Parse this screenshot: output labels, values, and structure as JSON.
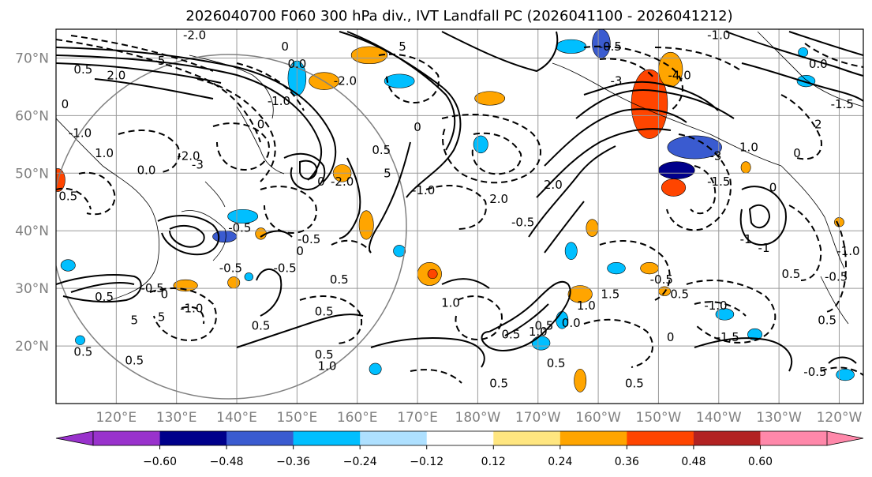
{
  "chart_data": {
    "type": "contour_map",
    "title": "2026040700 F060 300 hPa div., IVT Landfall PC (2026041100 - 2026041212)",
    "lon_range": [
      110,
      244
    ],
    "lat_range": [
      10,
      75
    ],
    "x_ticks": [
      {
        "lon": 120,
        "label": "120°E"
      },
      {
        "lon": 130,
        "label": "130°E"
      },
      {
        "lon": 140,
        "label": "140°E"
      },
      {
        "lon": 150,
        "label": "150°E"
      },
      {
        "lon": 160,
        "label": "160°E"
      },
      {
        "lon": 170,
        "label": "170°E"
      },
      {
        "lon": 180,
        "label": "180°W"
      },
      {
        "lon": 190,
        "label": "170°W"
      },
      {
        "lon": 200,
        "label": "160°W"
      },
      {
        "lon": 210,
        "label": "150°W"
      },
      {
        "lon": 220,
        "label": "140°W"
      },
      {
        "lon": 230,
        "label": "130°W"
      },
      {
        "lon": 240,
        "label": "120°W"
      }
    ],
    "y_ticks": [
      {
        "lat": 20,
        "label": "20°N"
      },
      {
        "lat": 30,
        "label": "30°N"
      },
      {
        "lat": 40,
        "label": "40°N"
      },
      {
        "lat": 50,
        "label": "50°N"
      },
      {
        "lat": 60,
        "label": "60°N"
      },
      {
        "lat": 70,
        "label": "70°N"
      }
    ],
    "colorbar": {
      "ticks": [
        "−0.60",
        "−0.48",
        "−0.36",
        "−0.24",
        "−0.12",
        "0.12",
        "0.24",
        "0.36",
        "0.48",
        "0.60"
      ],
      "colors": [
        "#9932cc",
        "#00008b",
        "#3a5bd0",
        "#00bfff",
        "#aee0ff",
        "#ffffff",
        "#ffe680",
        "#ffa500",
        "#ff4500",
        "#b22222",
        "#ff88aa"
      ],
      "extend": "both"
    },
    "shaded_blobs": [
      {
        "lon": 110.3,
        "lat": 48.8,
        "rx": 1.2,
        "ry": 2.0,
        "color": "#ff4500"
      },
      {
        "lon": 131.5,
        "lat": 30.5,
        "rx": 2.0,
        "ry": 1.0,
        "color": "#ffa500"
      },
      {
        "lon": 139.5,
        "lat": 31.0,
        "rx": 1.0,
        "ry": 1.0,
        "color": "#ffa500"
      },
      {
        "lon": 141.0,
        "lat": 42.5,
        "rx": 2.5,
        "ry": 1.2,
        "color": "#00bfff"
      },
      {
        "lon": 138.0,
        "lat": 39.0,
        "rx": 2.0,
        "ry": 1.0,
        "color": "#3a5bd0"
      },
      {
        "lon": 144.0,
        "lat": 39.5,
        "rx": 0.9,
        "ry": 1.0,
        "color": "#ffa500"
      },
      {
        "lon": 150.0,
        "lat": 66.5,
        "rx": 1.5,
        "ry": 3.0,
        "color": "#00bfff"
      },
      {
        "lon": 154.5,
        "lat": 66.0,
        "rx": 2.5,
        "ry": 1.5,
        "color": "#ffa500"
      },
      {
        "lon": 162.0,
        "lat": 70.5,
        "rx": 3.0,
        "ry": 1.5,
        "color": "#ffa500"
      },
      {
        "lon": 167.0,
        "lat": 66.0,
        "rx": 2.5,
        "ry": 1.2,
        "color": "#00bfff"
      },
      {
        "lon": 157.5,
        "lat": 50.0,
        "rx": 1.5,
        "ry": 1.5,
        "color": "#ffa500"
      },
      {
        "lon": 161.5,
        "lat": 41.0,
        "rx": 1.2,
        "ry": 2.5,
        "color": "#ffa500"
      },
      {
        "lon": 167.0,
        "lat": 36.5,
        "rx": 1.0,
        "ry": 1.0,
        "color": "#00bfff"
      },
      {
        "lon": 172.0,
        "lat": 32.5,
        "rx": 2.0,
        "ry": 2.0,
        "color": "#ffa500"
      },
      {
        "lon": 172.5,
        "lat": 32.5,
        "rx": 0.8,
        "ry": 0.8,
        "color": "#ff4500"
      },
      {
        "lon": 180.5,
        "lat": 55.0,
        "rx": 1.2,
        "ry": 1.5,
        "color": "#00bfff"
      },
      {
        "lon": 182.0,
        "lat": 63.0,
        "rx": 2.5,
        "ry": 1.2,
        "color": "#ffa500"
      },
      {
        "lon": 195.5,
        "lat": 72.0,
        "rx": 2.5,
        "ry": 1.2,
        "color": "#00bfff"
      },
      {
        "lon": 200.5,
        "lat": 72.5,
        "rx": 1.5,
        "ry": 2.5,
        "color": "#3a5bd0"
      },
      {
        "lon": 208.5,
        "lat": 62.0,
        "rx": 3.0,
        "ry": 6.0,
        "color": "#ff4500"
      },
      {
        "lon": 212.0,
        "lat": 68.0,
        "rx": 2.0,
        "ry": 3.0,
        "color": "#ffa500"
      },
      {
        "lon": 216.0,
        "lat": 54.5,
        "rx": 4.5,
        "ry": 2.0,
        "color": "#3a5bd0"
      },
      {
        "lon": 213.0,
        "lat": 50.5,
        "rx": 3.0,
        "ry": 1.5,
        "color": "#00008b"
      },
      {
        "lon": 212.5,
        "lat": 47.5,
        "rx": 2.0,
        "ry": 1.5,
        "color": "#ff4500"
      },
      {
        "lon": 199.0,
        "lat": 40.5,
        "rx": 1.0,
        "ry": 1.5,
        "color": "#ffa500"
      },
      {
        "lon": 195.5,
        "lat": 36.5,
        "rx": 1.0,
        "ry": 1.5,
        "color": "#00bfff"
      },
      {
        "lon": 197.0,
        "lat": 29.0,
        "rx": 2.0,
        "ry": 1.5,
        "color": "#ffa500"
      },
      {
        "lon": 194.0,
        "lat": 24.5,
        "rx": 1.0,
        "ry": 1.5,
        "color": "#00bfff"
      },
      {
        "lon": 190.5,
        "lat": 20.5,
        "rx": 1.5,
        "ry": 1.2,
        "color": "#00bfff"
      },
      {
        "lon": 197.0,
        "lat": 14.0,
        "rx": 1.0,
        "ry": 2.0,
        "color": "#ffa500"
      },
      {
        "lon": 203.0,
        "lat": 33.5,
        "rx": 1.5,
        "ry": 1.0,
        "color": "#00bfff"
      },
      {
        "lon": 208.5,
        "lat": 33.5,
        "rx": 1.5,
        "ry": 1.0,
        "color": "#ffa500"
      },
      {
        "lon": 211.0,
        "lat": 29.5,
        "rx": 1.0,
        "ry": 0.8,
        "color": "#ffa500"
      },
      {
        "lon": 224.5,
        "lat": 51.0,
        "rx": 0.8,
        "ry": 1.0,
        "color": "#ffa500"
      },
      {
        "lon": 234.5,
        "lat": 66.0,
        "rx": 1.5,
        "ry": 1.0,
        "color": "#00bfff"
      },
      {
        "lon": 234.0,
        "lat": 71.0,
        "rx": 0.8,
        "ry": 0.8,
        "color": "#00bfff"
      },
      {
        "lon": 240.0,
        "lat": 41.5,
        "rx": 0.8,
        "ry": 0.8,
        "color": "#ffa500"
      },
      {
        "lon": 221.0,
        "lat": 25.5,
        "rx": 1.5,
        "ry": 1.0,
        "color": "#00bfff"
      },
      {
        "lon": 226.0,
        "lat": 22.0,
        "rx": 1.2,
        "ry": 1.0,
        "color": "#00bfff"
      },
      {
        "lon": 241.0,
        "lat": 15.0,
        "rx": 1.5,
        "ry": 1.0,
        "color": "#00bfff"
      },
      {
        "lon": 112.0,
        "lat": 34.0,
        "rx": 1.2,
        "ry": 1.0,
        "color": "#00bfff"
      },
      {
        "lon": 114.0,
        "lat": 21.0,
        "rx": 0.8,
        "ry": 0.8,
        "color": "#00bfff"
      },
      {
        "lon": 163.0,
        "lat": 16.0,
        "rx": 1.0,
        "ry": 1.0,
        "color": "#00bfff"
      },
      {
        "lon": 142.0,
        "lat": 32.0,
        "rx": 0.7,
        "ry": 0.7,
        "color": "#00bfff"
      }
    ],
    "contour_labels": [
      {
        "lon": 133.0,
        "lat": 74.0,
        "text": "-2.0"
      },
      {
        "lon": 114.5,
        "lat": 68.0,
        "text": "0.5"
      },
      {
        "lon": 127.5,
        "lat": 69.5,
        "text": "5"
      },
      {
        "lon": 120.0,
        "lat": 67.0,
        "text": "2.0"
      },
      {
        "lon": 111.5,
        "lat": 62.0,
        "text": "0"
      },
      {
        "lon": 114.0,
        "lat": 57.0,
        "text": "-1.0"
      },
      {
        "lon": 118.0,
        "lat": 53.5,
        "text": "1.0"
      },
      {
        "lon": 132.0,
        "lat": 53.0,
        "text": "-2.0"
      },
      {
        "lon": 133.5,
        "lat": 51.5,
        "text": "-3"
      },
      {
        "lon": 125.0,
        "lat": 50.5,
        "text": "0.0"
      },
      {
        "lon": 112.0,
        "lat": 46.0,
        "text": "0.5"
      },
      {
        "lon": 148.0,
        "lat": 72.0,
        "text": "0"
      },
      {
        "lon": 150.0,
        "lat": 69.0,
        "text": "0.0"
      },
      {
        "lon": 158.0,
        "lat": 66.0,
        "text": "-2.0"
      },
      {
        "lon": 147.0,
        "lat": 62.5,
        "text": "-1.0"
      },
      {
        "lon": 144.0,
        "lat": 58.5,
        "text": "0"
      },
      {
        "lon": 157.5,
        "lat": 48.5,
        "text": "-2.0"
      },
      {
        "lon": 164.0,
        "lat": 54.0,
        "text": "0.5"
      },
      {
        "lon": 165.0,
        "lat": 50.0,
        "text": "5"
      },
      {
        "lon": 171.0,
        "lat": 47.0,
        "text": "-1.0"
      },
      {
        "lon": 170.0,
        "lat": 58.0,
        "text": "0"
      },
      {
        "lon": 183.5,
        "lat": 45.5,
        "text": "2.0"
      },
      {
        "lon": 187.5,
        "lat": 41.5,
        "text": "-0.5"
      },
      {
        "lon": 192.5,
        "lat": 48.0,
        "text": "2.0"
      },
      {
        "lon": 167.5,
        "lat": 72.0,
        "text": "5"
      },
      {
        "lon": 202.0,
        "lat": 72.0,
        "text": "-0.5"
      },
      {
        "lon": 203.0,
        "lat": 66.0,
        "text": "-3"
      },
      {
        "lon": 213.5,
        "lat": 67.0,
        "text": "-4.0"
      },
      {
        "lon": 219.5,
        "lat": 53.0,
        "text": "-3"
      },
      {
        "lon": 225.0,
        "lat": 54.5,
        "text": "1.0"
      },
      {
        "lon": 220.0,
        "lat": 48.5,
        "text": "-1.5"
      },
      {
        "lon": 220.0,
        "lat": 74.0,
        "text": "-1.0"
      },
      {
        "lon": 236.5,
        "lat": 69.0,
        "text": "0.0"
      },
      {
        "lon": 240.5,
        "lat": 62.0,
        "text": "-1.5"
      },
      {
        "lon": 236.5,
        "lat": 58.5,
        "text": "2"
      },
      {
        "lon": 233.0,
        "lat": 53.5,
        "text": "0"
      },
      {
        "lon": 229.0,
        "lat": 47.5,
        "text": "0"
      },
      {
        "lon": 224.5,
        "lat": 38.5,
        "text": "-1"
      },
      {
        "lon": 227.5,
        "lat": 37.0,
        "text": "-1"
      },
      {
        "lon": 154.0,
        "lat": 48.5,
        "text": "0"
      },
      {
        "lon": 140.5,
        "lat": 40.5,
        "text": "-0.5"
      },
      {
        "lon": 152.0,
        "lat": 38.5,
        "text": "-0.5"
      },
      {
        "lon": 150.5,
        "lat": 36.5,
        "text": "0"
      },
      {
        "lon": 139.0,
        "lat": 33.5,
        "text": "-0.5"
      },
      {
        "lon": 148.0,
        "lat": 33.5,
        "text": "-0.5"
      },
      {
        "lon": 157.0,
        "lat": 31.5,
        "text": "0.5"
      },
      {
        "lon": 132.5,
        "lat": 26.5,
        "text": "-1.0"
      },
      {
        "lon": 126.0,
        "lat": 30.0,
        "text": "-0.5"
      },
      {
        "lon": 128.0,
        "lat": 29.0,
        "text": "0"
      },
      {
        "lon": 118.0,
        "lat": 28.5,
        "text": "0.5"
      },
      {
        "lon": 123.0,
        "lat": 24.5,
        "text": "5"
      },
      {
        "lon": 127.5,
        "lat": 25.0,
        "text": "5"
      },
      {
        "lon": 114.5,
        "lat": 19.0,
        "text": "0.5"
      },
      {
        "lon": 123.0,
        "lat": 17.5,
        "text": "0.5"
      },
      {
        "lon": 144.0,
        "lat": 23.5,
        "text": "0.5"
      },
      {
        "lon": 154.5,
        "lat": 18.5,
        "text": "0.5"
      },
      {
        "lon": 155.0,
        "lat": 16.5,
        "text": "1.0"
      },
      {
        "lon": 154.5,
        "lat": 26.0,
        "text": "0.5"
      },
      {
        "lon": 175.5,
        "lat": 27.5,
        "text": "1.0"
      },
      {
        "lon": 183.5,
        "lat": 13.5,
        "text": "0.5"
      },
      {
        "lon": 185.5,
        "lat": 22.0,
        "text": "0.5"
      },
      {
        "lon": 190.0,
        "lat": 22.5,
        "text": "1.0"
      },
      {
        "lon": 191.0,
        "lat": 23.5,
        "text": "0.5"
      },
      {
        "lon": 193.0,
        "lat": 17.0,
        "text": "0.5"
      },
      {
        "lon": 206.0,
        "lat": 13.5,
        "text": "0.5"
      },
      {
        "lon": 202.0,
        "lat": 29.0,
        "text": "1.5"
      },
      {
        "lon": 198.0,
        "lat": 27.0,
        "text": "1.0"
      },
      {
        "lon": 195.5,
        "lat": 24.0,
        "text": "0.0"
      },
      {
        "lon": 212.0,
        "lat": 21.5,
        "text": "0"
      },
      {
        "lon": 213.5,
        "lat": 29.0,
        "text": "0.5"
      },
      {
        "lon": 219.5,
        "lat": 27.0,
        "text": "-1.0"
      },
      {
        "lon": 221.5,
        "lat": 21.5,
        "text": "-1.5"
      },
      {
        "lon": 232.0,
        "lat": 32.5,
        "text": "0.5"
      },
      {
        "lon": 239.5,
        "lat": 32.0,
        "text": "-0.5"
      },
      {
        "lon": 241.5,
        "lat": 36.5,
        "text": "-1.0"
      },
      {
        "lon": 238.0,
        "lat": 24.5,
        "text": "0.5"
      },
      {
        "lon": 236.0,
        "lat": 15.5,
        "text": "-0.5"
      },
      {
        "lon": 210.5,
        "lat": 31.5,
        "text": "-0.5"
      }
    ]
  }
}
